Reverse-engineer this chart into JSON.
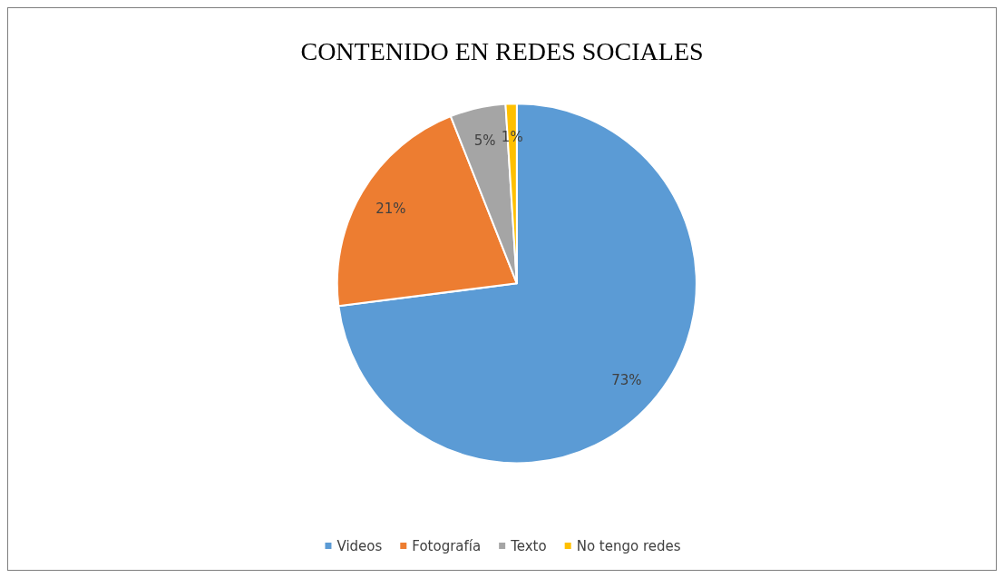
{
  "chart_data": {
    "type": "pie",
    "title": "CONTENIDO EN REDES SOCIALES",
    "categories": [
      "Videos",
      "Fotografía",
      "Texto",
      "No tengo redes"
    ],
    "values": [
      73,
      21,
      5,
      1
    ],
    "colors": [
      "#5b9bd5",
      "#ed7d31",
      "#a5a5a5",
      "#ffc000"
    ],
    "value_labels": [
      "73%",
      "21%",
      "5%",
      "1%"
    ],
    "legend": "bottom"
  }
}
